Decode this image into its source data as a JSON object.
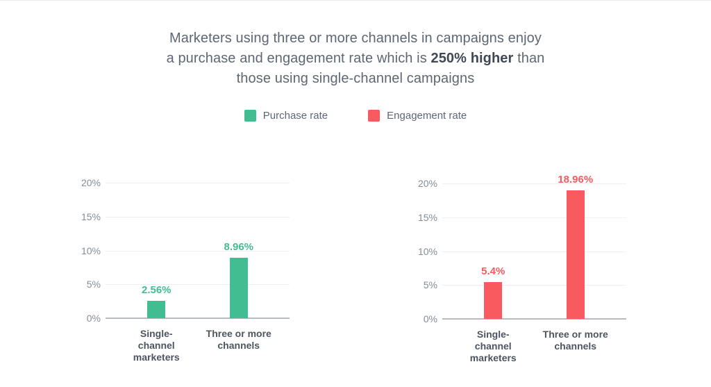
{
  "title": {
    "line1": "Marketers using three or more channels in campaigns enjoy",
    "line2_pre": "a purchase and engagement rate which is ",
    "line2_bold": "250% higher",
    "line2_post": " than",
    "line3": "those using single-channel campaigns"
  },
  "legend": {
    "items": [
      {
        "label": "Purchase rate",
        "color": "#42bd92"
      },
      {
        "label": "Engagement rate",
        "color": "#f95a5f"
      }
    ]
  },
  "chart_data": [
    {
      "type": "bar",
      "series_name": "Purchase rate",
      "categories": [
        "Single-channel marketers",
        "Three or more channels"
      ],
      "values": [
        2.56,
        8.96
      ],
      "value_labels": [
        "2.56%",
        "8.96%"
      ],
      "color": "#42bd92",
      "ylim": [
        0,
        20
      ],
      "yticks": [
        "0%",
        "5%",
        "10%",
        "15%",
        "20%"
      ],
      "grid": true,
      "xlabel": "",
      "ylabel": ""
    },
    {
      "type": "bar",
      "series_name": "Engagement rate",
      "categories": [
        "Single-channel marketers",
        "Three or more channels"
      ],
      "values": [
        5.4,
        18.96
      ],
      "value_labels": [
        "5.4%",
        "18.96%"
      ],
      "color": "#f95a5f",
      "ylim": [
        0,
        20
      ],
      "yticks": [
        "0%",
        "5%",
        "10%",
        "15%",
        "20%"
      ],
      "grid": true,
      "xlabel": "",
      "ylabel": ""
    }
  ]
}
